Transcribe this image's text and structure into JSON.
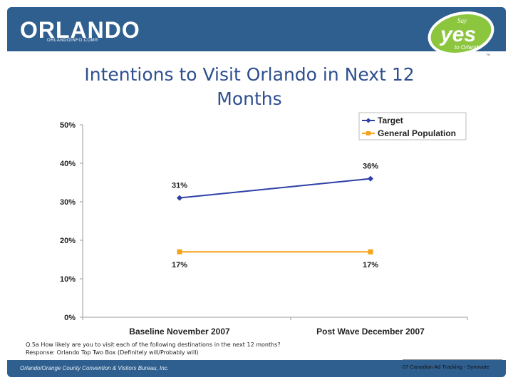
{
  "header": {
    "logo_text": "ORLANDO",
    "logo_sub": "ORLANDOINFO.COM®",
    "badge_say": "Say",
    "badge_yes": "yes",
    "badge_to": "to Orlando",
    "badge_tm": "TM"
  },
  "colors": {
    "header_bg": "#2f5f8f",
    "badge_fill": "#8cc63f",
    "target_line": "#2e3fa8",
    "genpop_line": "#f5a31a",
    "title": "#2f4f8f"
  },
  "title_lines": [
    "Intentions to Visit Orlando in Next 12",
    "Months"
  ],
  "chart_data": {
    "type": "line",
    "title": "Intentions to Visit Orlando in Next 12 Months",
    "categories": [
      "Baseline November 2007",
      "Post Wave December 2007"
    ],
    "series": [
      {
        "name": "Target",
        "values": [
          31,
          36
        ],
        "labels": [
          "31%",
          "36%"
        ]
      },
      {
        "name": "General Population",
        "values": [
          17,
          17
        ],
        "labels": [
          "17%",
          "17%"
        ]
      }
    ],
    "ylim": [
      0,
      50
    ],
    "yticks": [
      0,
      10,
      20,
      30,
      40,
      50
    ],
    "ytick_labels": [
      "0%",
      "10%",
      "20%",
      "30%",
      "40%",
      "50%"
    ],
    "xlabel": "",
    "ylabel": "",
    "legend_position": "top-right",
    "grid": false
  },
  "footnote": {
    "question": "Q.5a How likely are you to visit each of the following destinations in the next 12 months?",
    "response": "Response: Orlando Top Two Box (Definitely will/Probably will)"
  },
  "footer": {
    "left": "Orlando/Orange County Convention & Visitors Bureau, Inc.",
    "right": "07 Canadian Ad Tracking - Synovate"
  }
}
